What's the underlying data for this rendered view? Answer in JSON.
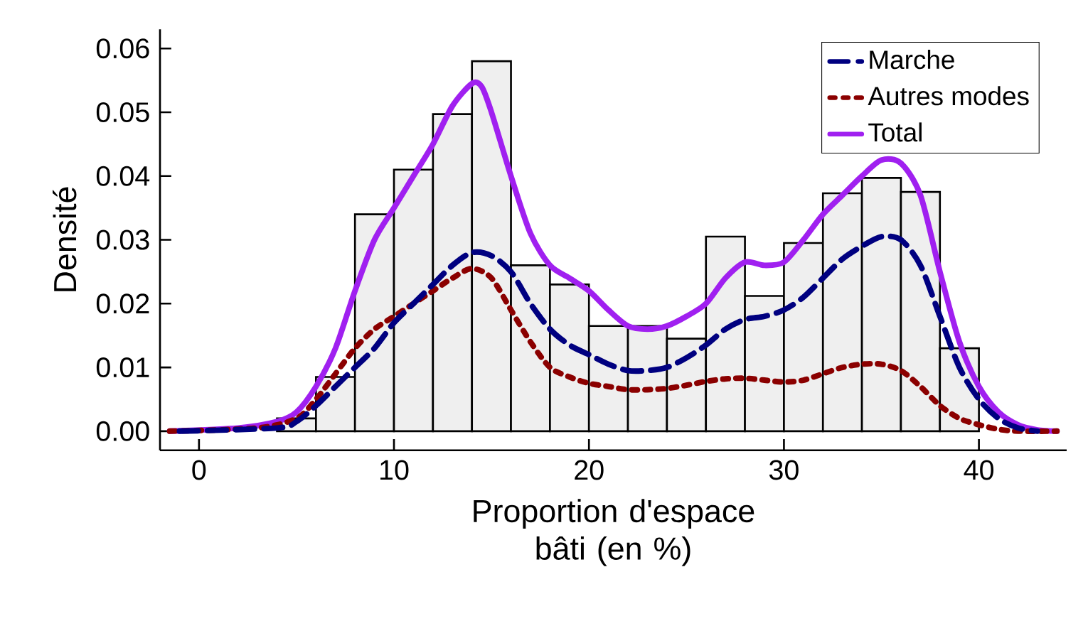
{
  "chart_data": {
    "type": "histogram",
    "xlabel": "Proportion d'espace bâti (en %)",
    "ylabel": "Densité",
    "bins": [
      4,
      6,
      8,
      10,
      12,
      14,
      16,
      18,
      20,
      22,
      24,
      26,
      28,
      30,
      32,
      34,
      36,
      38,
      40
    ],
    "values": [
      0.002,
      0.0085,
      0.034,
      0.041,
      0.0497,
      0.058,
      0.026,
      0.023,
      0.0165,
      0.0165,
      0.0145,
      0.0305,
      0.0212,
      0.0295,
      0.0373,
      0.0397,
      0.0375,
      0.013
    ],
    "color": "#efefef",
    "xlim": [
      -2,
      44.5
    ],
    "ylim": [
      -0.003,
      0.063
    ],
    "xticks": [
      0,
      10,
      20,
      30,
      40
    ],
    "yticks": [
      {
        "value": 0,
        "label": "0.00"
      },
      {
        "value": 0.01,
        "label": "0.01"
      },
      {
        "value": 0.02,
        "label": "0.02"
      },
      {
        "value": 0.03,
        "label": "0.03"
      },
      {
        "value": 0.04,
        "label": "0.04"
      },
      {
        "value": 0.05,
        "label": "0.05"
      },
      {
        "value": 0.06,
        "label": "0.06"
      }
    ],
    "legend": "top right",
    "grid": false,
    "series": [
      {
        "name": "Marche",
        "type": "line",
        "color": "#000080",
        "line_style": "dashed",
        "x": [
          -1,
          4,
          5,
          6,
          7,
          8,
          9,
          10,
          11,
          12,
          13,
          14,
          15,
          16,
          17,
          18,
          19,
          20,
          21,
          22,
          23,
          24,
          25,
          26,
          27,
          28,
          29,
          30,
          31,
          32,
          33,
          34,
          35,
          36,
          37,
          38,
          39,
          40,
          41,
          42,
          43
        ],
        "values": [
          0,
          0.0005,
          0.0015,
          0.004,
          0.007,
          0.01,
          0.013,
          0.017,
          0.02,
          0.023,
          0.026,
          0.028,
          0.0275,
          0.025,
          0.02,
          0.016,
          0.0135,
          0.012,
          0.0105,
          0.0095,
          0.0095,
          0.01,
          0.0115,
          0.0135,
          0.016,
          0.0175,
          0.018,
          0.019,
          0.021,
          0.024,
          0.027,
          0.029,
          0.0305,
          0.03,
          0.026,
          0.018,
          0.01,
          0.005,
          0.002,
          0.0005,
          0
        ]
      },
      {
        "name": "Autres modes",
        "type": "line",
        "color": "#8b0000",
        "line_style": "dotted",
        "x": [
          -1.5,
          3,
          5,
          6,
          7,
          8,
          9,
          10,
          11,
          12,
          13,
          14,
          15,
          16,
          17,
          18,
          19,
          20,
          21,
          22,
          23,
          24,
          25,
          26,
          27,
          28,
          29,
          30,
          31,
          32,
          33,
          34,
          35,
          36,
          37,
          38,
          39,
          40,
          41,
          42,
          44
        ],
        "values": [
          0,
          0.0005,
          0.002,
          0.005,
          0.009,
          0.013,
          0.016,
          0.018,
          0.02,
          0.022,
          0.024,
          0.0255,
          0.024,
          0.019,
          0.014,
          0.01,
          0.0085,
          0.0075,
          0.007,
          0.0065,
          0.0065,
          0.0067,
          0.0072,
          0.0078,
          0.0082,
          0.0083,
          0.008,
          0.0077,
          0.008,
          0.009,
          0.01,
          0.0105,
          0.0105,
          0.0095,
          0.007,
          0.004,
          0.002,
          0.001,
          0.0003,
          0,
          0
        ]
      },
      {
        "name": "Total",
        "type": "line",
        "color": "#a020f0",
        "line_style": "solid",
        "x": [
          -1.5,
          2,
          4,
          5,
          6,
          7,
          8,
          9,
          10,
          11,
          12,
          13,
          14,
          14.5,
          15,
          16,
          17,
          18,
          19,
          20,
          21,
          22,
          23,
          24,
          25,
          26,
          27,
          28,
          29,
          30,
          31,
          32,
          33,
          34,
          35,
          36,
          37,
          38,
          39,
          40,
          41,
          42,
          43,
          44
        ],
        "values": [
          0,
          0.0005,
          0.0015,
          0.003,
          0.007,
          0.013,
          0.022,
          0.03,
          0.035,
          0.04,
          0.045,
          0.051,
          0.0545,
          0.054,
          0.05,
          0.04,
          0.031,
          0.026,
          0.024,
          0.022,
          0.019,
          0.0165,
          0.016,
          0.0165,
          0.018,
          0.02,
          0.024,
          0.0265,
          0.026,
          0.0265,
          0.03,
          0.034,
          0.037,
          0.04,
          0.0425,
          0.042,
          0.037,
          0.025,
          0.014,
          0.007,
          0.003,
          0.001,
          0.0002,
          0
        ]
      }
    ]
  }
}
